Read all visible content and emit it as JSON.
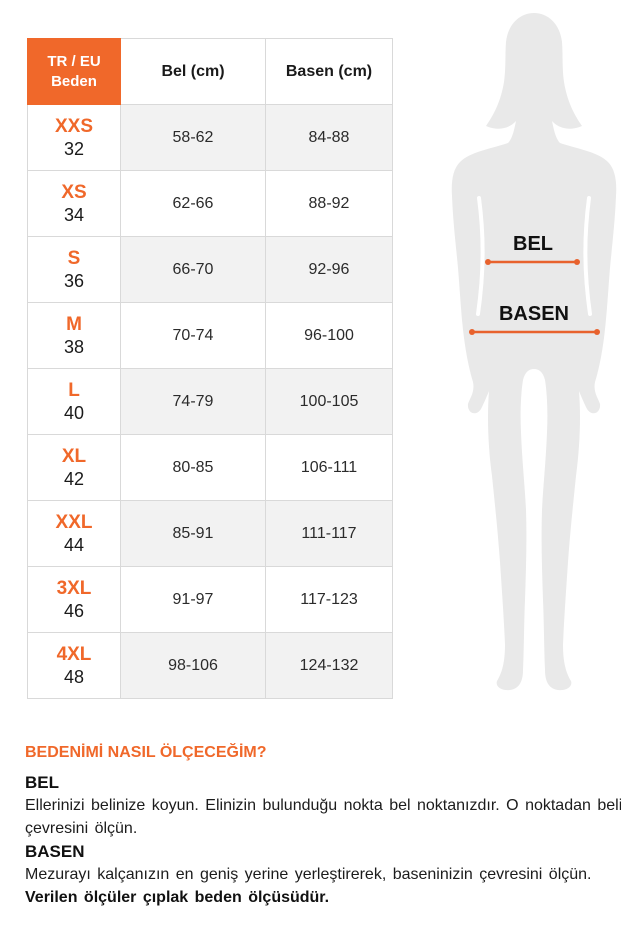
{
  "size_table": {
    "header": {
      "size_col_line1": "TR / EU",
      "size_col_line2": "Beden",
      "bel": "Bel (cm)",
      "basen": "Basen (cm)"
    },
    "rows": [
      {
        "size": "XXS",
        "eu": "32",
        "bel": "58-62",
        "basen": "84-88"
      },
      {
        "size": "XS",
        "eu": "34",
        "bel": "62-66",
        "basen": "88-92"
      },
      {
        "size": "S",
        "eu": "36",
        "bel": "66-70",
        "basen": "92-96"
      },
      {
        "size": "M",
        "eu": "38",
        "bel": "70-74",
        "basen": "96-100"
      },
      {
        "size": "L",
        "eu": "40",
        "bel": "74-79",
        "basen": "100-105"
      },
      {
        "size": "XL",
        "eu": "42",
        "bel": "80-85",
        "basen": "106-111"
      },
      {
        "size": "XXL",
        "eu": "44",
        "bel": "85-91",
        "basen": "111-117"
      },
      {
        "size": "3XL",
        "eu": "46",
        "bel": "91-97",
        "basen": "117-123"
      },
      {
        "size": "4XL",
        "eu": "48",
        "bel": "98-106",
        "basen": "124-132"
      }
    ]
  },
  "figure": {
    "bel_label": "BEL",
    "basen_label": "BASEN"
  },
  "instructions": {
    "title": "BEDENİMİ NASIL ÖLÇECEĞİM?",
    "bel_heading": "BEL",
    "bel_line1": "Ellerinizi belinize koyun. Elinizin bulunduğu nokta bel noktanızdır. O noktadan belinizin",
    "bel_line2": "çevresini ölçün.",
    "basen_heading": "BASEN",
    "basen_text": "Mezurayı kalçanızın en geniş yerine yerleştirerek, baseninizin çevresini ölçün.",
    "note": "Verilen ölçüler çıplak beden ölçüsüdür."
  },
  "colors": {
    "accent": "#F0682A",
    "accent_line": "#E8622D",
    "row_alt": "#F2F2F2",
    "border": "#D9D9D9",
    "silhouette": "#E9E9E9"
  }
}
